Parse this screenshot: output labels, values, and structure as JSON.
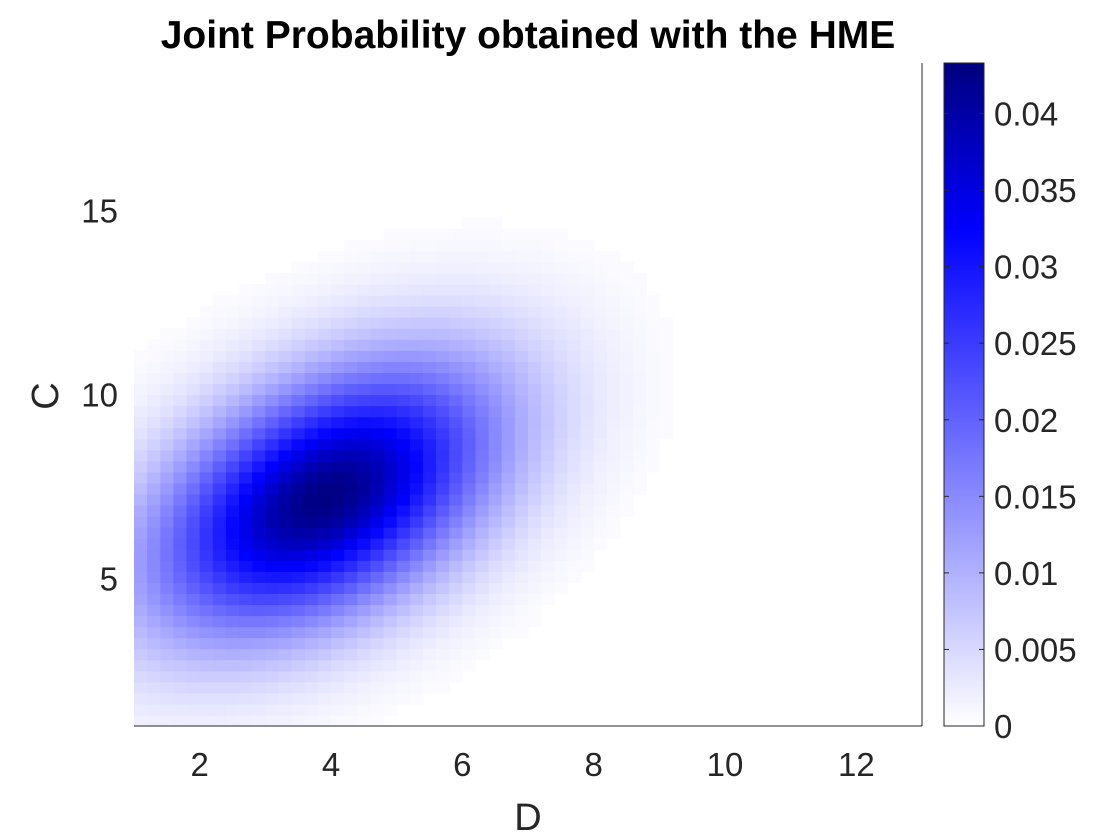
{
  "chart_data": {
    "type": "heatmap",
    "title": "Joint Probability obtained with the HME",
    "xlabel": "D",
    "ylabel": "C",
    "xlim": [
      1,
      13
    ],
    "ylim": [
      1,
      19
    ],
    "xticks": [
      2,
      4,
      6,
      8,
      10,
      12
    ],
    "yticks": [
      5,
      10,
      15
    ],
    "colorbar": {
      "range": [
        0,
        0.0433
      ],
      "ticks": [
        0,
        0.005,
        0.01,
        0.015,
        0.02,
        0.025,
        0.03,
        0.035,
        0.04
      ],
      "tick_labels": [
        "0",
        "0.005",
        "0.01",
        "0.015",
        "0.02",
        "0.025",
        "0.03",
        "0.035",
        "0.04"
      ],
      "colormap": [
        "#ffffff",
        "#0000ff",
        "#00007f"
      ]
    },
    "density": {
      "description_type": "bivariate-gaussian",
      "peak_value": 0.043,
      "mean_D": 3.9,
      "mean_C": 7.2,
      "sd_D": 1.8,
      "sd_C": 2.5,
      "correlation": 0.45,
      "cutoff_value": 0.0005
    },
    "grid": false,
    "legend": "none"
  }
}
